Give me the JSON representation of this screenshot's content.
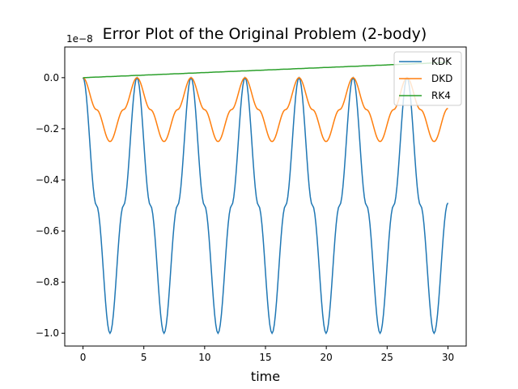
{
  "chart_data": {
    "type": "line",
    "title": "Error Plot of the Original Problem (2-body)",
    "xlabel": "time",
    "ylabel": "",
    "y_offset_label": "1e−8",
    "xlim": [
      -1.5,
      31.5
    ],
    "ylim": [
      -1.05,
      0.12
    ],
    "xticks": [
      0,
      5,
      10,
      15,
      20,
      25,
      30
    ],
    "xtick_labels": [
      "0",
      "5",
      "10",
      "15",
      "20",
      "25",
      "30"
    ],
    "yticks": [
      -1.0,
      -0.8,
      -0.6,
      -0.4,
      -0.2,
      0.0
    ],
    "ytick_labels": [
      "−1.0",
      "−0.8",
      "−0.6",
      "−0.4",
      "−0.2",
      "0.0"
    ],
    "grid": false,
    "legend_position": "top-right",
    "x": [
      0,
      1.11,
      2.22,
      3.33,
      4.44,
      5.55,
      6.66,
      7.77,
      8.88,
      9.99,
      11.1,
      12.21,
      13.32,
      14.43,
      15.54,
      16.65,
      17.76,
      18.87,
      19.98,
      21.09,
      22.2,
      23.31,
      24.42,
      25.53,
      26.64,
      27.75,
      28.86,
      30
    ],
    "series": [
      {
        "name": "KDK",
        "color": "#1f77b4",
        "values": [
          0.0,
          -0.5,
          -1.0,
          -0.5,
          0.0,
          -0.5,
          -1.0,
          -0.5,
          0.0,
          -0.5,
          -1.0,
          -0.5,
          0.0,
          -0.5,
          -1.0,
          -0.5,
          0.0,
          -0.5,
          -1.0,
          -0.5,
          0.0,
          -0.5,
          -1.0,
          -0.5,
          0.0,
          -0.5,
          -1.0,
          -0.49
        ]
      },
      {
        "name": "DKD",
        "color": "#ff7f0e",
        "values": [
          0.0,
          -0.125,
          -0.25,
          -0.125,
          0.0,
          -0.125,
          -0.25,
          -0.125,
          0.0,
          -0.125,
          -0.25,
          -0.125,
          0.0,
          -0.125,
          -0.25,
          -0.125,
          0.0,
          -0.125,
          -0.25,
          -0.125,
          0.0,
          -0.125,
          -0.25,
          -0.125,
          0.0,
          -0.125,
          -0.25,
          -0.12
        ]
      },
      {
        "name": "RK4",
        "color": "#2ca02c",
        "values": [
          0.0,
          0.0022,
          0.0044,
          0.0066,
          0.0089,
          0.0111,
          0.0133,
          0.0155,
          0.0177,
          0.0199,
          0.0222,
          0.0244,
          0.0266,
          0.0288,
          0.031,
          0.0332,
          0.0355,
          0.0377,
          0.0399,
          0.0421,
          0.0443,
          0.0465,
          0.0488,
          0.051,
          0.0532,
          0.0554,
          0.0576,
          0.06
        ]
      }
    ]
  }
}
